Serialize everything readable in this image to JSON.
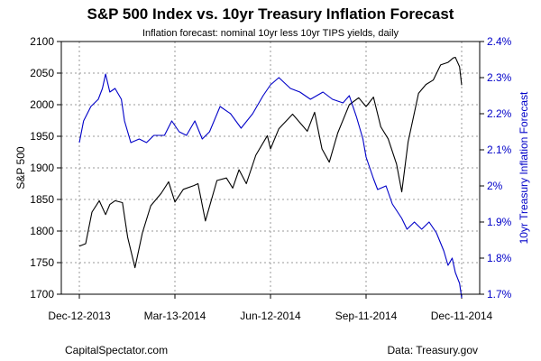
{
  "chart_data": {
    "type": "line",
    "title": "S&P 500 Index vs. 10yr Treasury Inflation Forecast",
    "subtitle": "Inflation forecast: nominal 10yr less 10yr TIPS yields, daily",
    "ylabel_left": "S&P 500",
    "ylabel_right": "10yr Treasury Inflation Forecast",
    "ylim_left": [
      1700,
      2100
    ],
    "ylim_right": [
      1.7,
      2.4
    ],
    "y_ticks_left": [
      "1700",
      "1750",
      "1800",
      "1850",
      "1900",
      "1950",
      "2000",
      "2050",
      "2100"
    ],
    "y_ticks_right": [
      "1.7%",
      "1.8%",
      "1.9%",
      "2%",
      "2.1%",
      "2.2%",
      "2.3%",
      "2.4%"
    ],
    "x_ticks": [
      "Dec-12-2013",
      "Mar-13-2014",
      "Jun-12-2014",
      "Sep-11-2014",
      "Dec-11-2014"
    ],
    "xlim": [
      "2013-12-12",
      "2014-12-11"
    ],
    "grid": true,
    "series": [
      {
        "name": "S&P 500",
        "axis": "left",
        "color": "#000000",
        "points": [
          [
            "2013-12-12",
            1776
          ],
          [
            "2013-12-18",
            1780
          ],
          [
            "2013-12-24",
            1830
          ],
          [
            "2013-12-31",
            1848
          ],
          [
            "2014-01-06",
            1826
          ],
          [
            "2014-01-10",
            1842
          ],
          [
            "2014-01-15",
            1848
          ],
          [
            "2014-01-22",
            1845
          ],
          [
            "2014-01-27",
            1790
          ],
          [
            "2014-02-03",
            1742
          ],
          [
            "2014-02-10",
            1797
          ],
          [
            "2014-02-18",
            1840
          ],
          [
            "2014-02-28",
            1860
          ],
          [
            "2014-03-07",
            1878
          ],
          [
            "2014-03-13",
            1846
          ],
          [
            "2014-03-21",
            1866
          ],
          [
            "2014-03-31",
            1872
          ],
          [
            "2014-04-04",
            1875
          ],
          [
            "2014-04-11",
            1816
          ],
          [
            "2014-04-22",
            1880
          ],
          [
            "2014-05-01",
            1884
          ],
          [
            "2014-05-07",
            1868
          ],
          [
            "2014-05-13",
            1897
          ],
          [
            "2014-05-20",
            1875
          ],
          [
            "2014-05-29",
            1920
          ],
          [
            "2014-06-09",
            1951
          ],
          [
            "2014-06-12",
            1930
          ],
          [
            "2014-06-20",
            1962
          ],
          [
            "2014-07-03",
            1985
          ],
          [
            "2014-07-17",
            1958
          ],
          [
            "2014-07-24",
            1988
          ],
          [
            "2014-07-31",
            1930
          ],
          [
            "2014-08-07",
            1909
          ],
          [
            "2014-08-15",
            1955
          ],
          [
            "2014-08-26",
            2000
          ],
          [
            "2014-09-04",
            2011
          ],
          [
            "2014-09-11",
            1997
          ],
          [
            "2014-09-18",
            2012
          ],
          [
            "2014-09-25",
            1965
          ],
          [
            "2014-10-02",
            1946
          ],
          [
            "2014-10-10",
            1906
          ],
          [
            "2014-10-15",
            1862
          ],
          [
            "2014-10-21",
            1941
          ],
          [
            "2014-10-31",
            2018
          ],
          [
            "2014-11-07",
            2032
          ],
          [
            "2014-11-14",
            2039
          ],
          [
            "2014-11-21",
            2063
          ],
          [
            "2014-11-28",
            2067
          ],
          [
            "2014-12-03",
            2074
          ],
          [
            "2014-12-05",
            2075
          ],
          [
            "2014-12-09",
            2060
          ],
          [
            "2014-12-11",
            2031
          ]
        ]
      },
      {
        "name": "10yr Treasury Inflation Forecast",
        "axis": "right",
        "color": "#0000c8",
        "points": [
          [
            "2013-12-12",
            2.12
          ],
          [
            "2013-12-16",
            2.18
          ],
          [
            "2013-12-23",
            2.22
          ],
          [
            "2013-12-30",
            2.24
          ],
          [
            "2014-01-03",
            2.27
          ],
          [
            "2014-01-06",
            2.31
          ],
          [
            "2014-01-10",
            2.26
          ],
          [
            "2014-01-15",
            2.27
          ],
          [
            "2014-01-21",
            2.24
          ],
          [
            "2014-01-24",
            2.18
          ],
          [
            "2014-01-30",
            2.12
          ],
          [
            "2014-02-07",
            2.13
          ],
          [
            "2014-02-14",
            2.12
          ],
          [
            "2014-02-21",
            2.14
          ],
          [
            "2014-03-03",
            2.14
          ],
          [
            "2014-03-10",
            2.18
          ],
          [
            "2014-03-17",
            2.15
          ],
          [
            "2014-03-24",
            2.14
          ],
          [
            "2014-04-01",
            2.18
          ],
          [
            "2014-04-08",
            2.13
          ],
          [
            "2014-04-15",
            2.15
          ],
          [
            "2014-04-25",
            2.22
          ],
          [
            "2014-05-05",
            2.2
          ],
          [
            "2014-05-15",
            2.16
          ],
          [
            "2014-05-26",
            2.2
          ],
          [
            "2014-06-05",
            2.25
          ],
          [
            "2014-06-12",
            2.28
          ],
          [
            "2014-06-20",
            2.3
          ],
          [
            "2014-07-01",
            2.27
          ],
          [
            "2014-07-10",
            2.26
          ],
          [
            "2014-07-20",
            2.24
          ],
          [
            "2014-08-01",
            2.26
          ],
          [
            "2014-08-10",
            2.24
          ],
          [
            "2014-08-20",
            2.23
          ],
          [
            "2014-08-26",
            2.25
          ],
          [
            "2014-09-02",
            2.19
          ],
          [
            "2014-09-08",
            2.13
          ],
          [
            "2014-09-11",
            2.08
          ],
          [
            "2014-09-18",
            2.02
          ],
          [
            "2014-09-22",
            1.99
          ],
          [
            "2014-09-30",
            2.0
          ],
          [
            "2014-10-06",
            1.95
          ],
          [
            "2014-10-15",
            1.91
          ],
          [
            "2014-10-20",
            1.88
          ],
          [
            "2014-10-27",
            1.9
          ],
          [
            "2014-11-03",
            1.88
          ],
          [
            "2014-11-10",
            1.9
          ],
          [
            "2014-11-17",
            1.87
          ],
          [
            "2014-11-24",
            1.82
          ],
          [
            "2014-11-28",
            1.78
          ],
          [
            "2014-12-02",
            1.8
          ],
          [
            "2014-12-05",
            1.76
          ],
          [
            "2014-12-09",
            1.73
          ],
          [
            "2014-12-11",
            1.69
          ]
        ]
      }
    ]
  },
  "footer": {
    "left": "CapitalSpectator.com",
    "right": "Data: Treasury.gov"
  },
  "colors": {
    "sp500_line": "#000000",
    "inflation_line": "#0000c8",
    "right_axis_text": "#0000c8"
  }
}
